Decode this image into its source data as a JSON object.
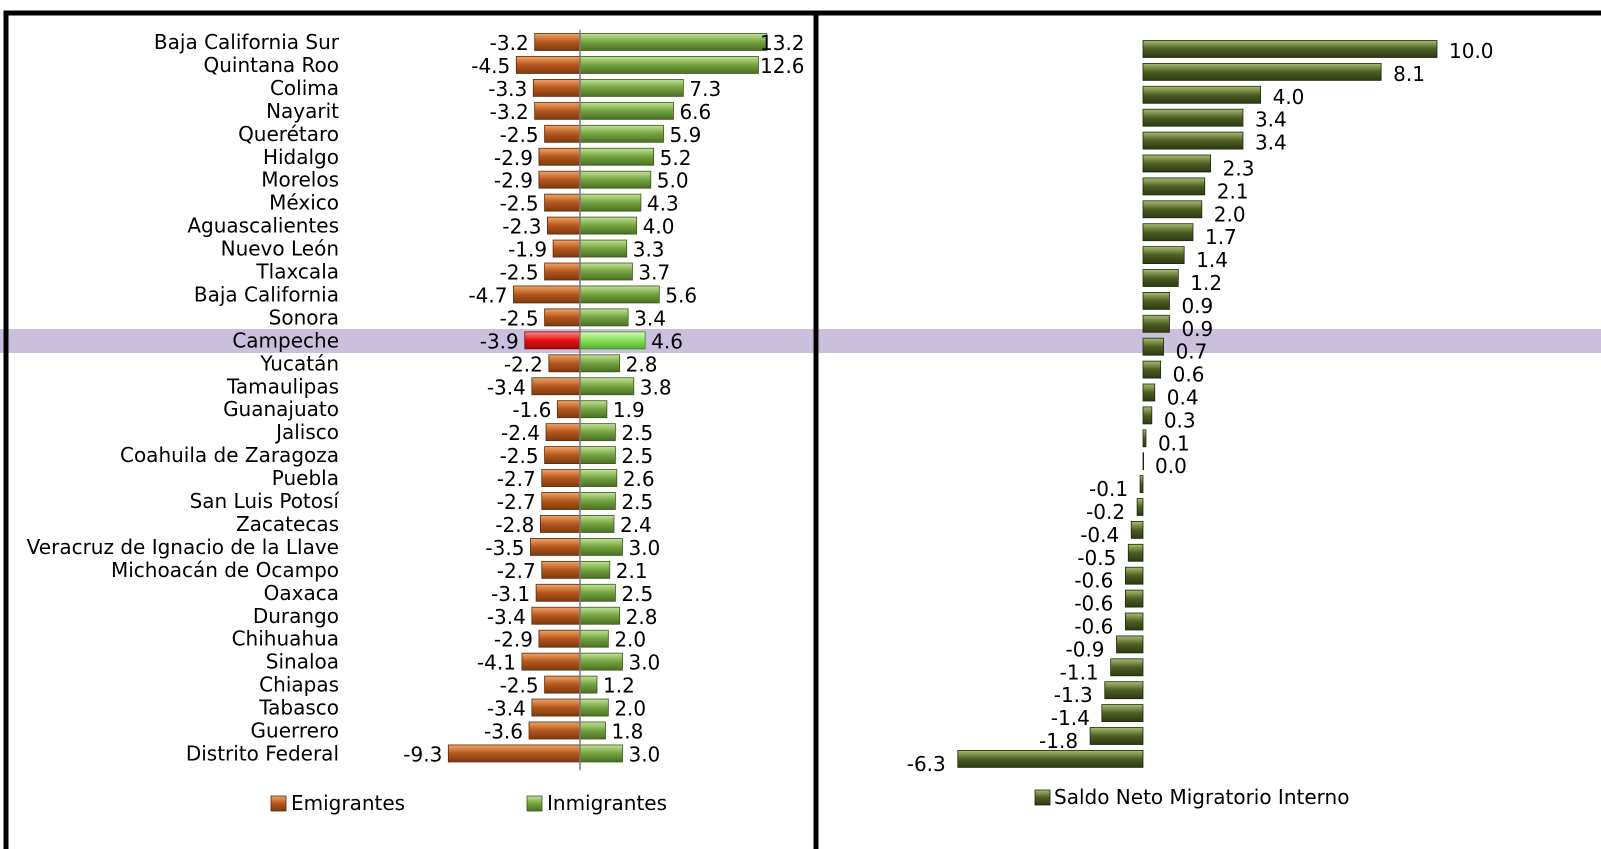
{
  "chart_data": [
    {
      "type": "bar",
      "orientation": "horizontal",
      "categories": [
        "Baja California Sur",
        "Quintana Roo",
        "Colima",
        "Nayarit",
        "Querétaro",
        "Hidalgo",
        "Morelos",
        "México",
        "Aguascalientes",
        "Nuevo León",
        "Tlaxcala",
        "Baja California",
        "Sonora",
        "Campeche",
        "Yucatán",
        "Tamaulipas",
        "Guanajuato",
        "Jalisco",
        "Coahuila de Zaragoza",
        "Puebla",
        "San Luis Potosí",
        "Zacatecas",
        "Veracruz de Ignacio de la Llave",
        "Michoacán de Ocampo",
        "Oaxaca",
        "Durango",
        "Chihuahua",
        "Sinaloa",
        "Chiapas",
        "Tabasco",
        "Guerrero",
        "Distrito Federal"
      ],
      "highlight_category": "Campeche",
      "series": [
        {
          "name": "Emigrantes",
          "color": "#b5561c",
          "highlight_color": "#e31010",
          "values": [
            -3.2,
            -4.5,
            -3.3,
            -3.2,
            -2.5,
            -2.9,
            -2.9,
            -2.5,
            -2.3,
            -1.9,
            -2.5,
            -4.7,
            -2.5,
            -3.9,
            -2.2,
            -3.4,
            -1.6,
            -2.4,
            -2.5,
            -2.7,
            -2.7,
            -2.8,
            -3.5,
            -2.7,
            -3.1,
            -3.4,
            -2.9,
            -4.1,
            -2.5,
            -3.4,
            -3.6,
            -9.3
          ],
          "labels": [
            "-3.2",
            "-4.5",
            "-3.3",
            "-3.2",
            "-2.5",
            "-2.9",
            "-2.9",
            "-2.5",
            "-2.3",
            "-1.9",
            "-2.5",
            "-4.7",
            "-2.5",
            "-3.9",
            "-2.2",
            "-3.4",
            "-1.6",
            "-2.4",
            "-2.5",
            "-2.7",
            "-2.7",
            "-2.8",
            "-3.5",
            "-2.7",
            "-3.1",
            "-3.4",
            "-2.9",
            "-4.1",
            "-2.5",
            "-3.4",
            "-3.6",
            "-9.3"
          ]
        },
        {
          "name": "Inmigrantes",
          "color": "#73a33e",
          "highlight_color": "#86e05a",
          "values": [
            13.2,
            12.6,
            7.3,
            6.6,
            5.9,
            5.2,
            5.0,
            4.3,
            4.0,
            3.3,
            3.7,
            5.6,
            3.4,
            4.6,
            2.8,
            3.8,
            1.9,
            2.5,
            2.5,
            2.6,
            2.5,
            2.4,
            3.0,
            2.1,
            2.5,
            2.8,
            2.0,
            3.0,
            1.2,
            2.0,
            1.8,
            3.0
          ],
          "labels": [
            "13.2",
            "12.6",
            "7.3",
            "6.6",
            "5.9",
            "5.2",
            "5.0",
            "4.3",
            "4.0",
            "3.3",
            "3.7",
            "5.6",
            "3.4",
            "4.6",
            "2.8",
            "3.8",
            "1.9",
            "2.5",
            "2.5",
            "2.6",
            "2.5",
            "2.4",
            "3.0",
            "2.1",
            "2.5",
            "2.8",
            "2.0",
            "3.0",
            "1.2",
            "2.0",
            "1.8",
            "3.0"
          ]
        }
      ],
      "legend": [
        "Emigrantes",
        "Inmigrantes"
      ],
      "legend_position": "bottom"
    },
    {
      "type": "bar",
      "orientation": "horizontal",
      "series": [
        {
          "name": "Saldo Neto Migratorio Interno",
          "color": "#4e5e24",
          "values": [
            10.0,
            8.1,
            4.0,
            3.4,
            3.4,
            2.3,
            2.1,
            2.0,
            1.7,
            1.4,
            1.2,
            0.9,
            0.9,
            0.7,
            0.6,
            0.4,
            0.3,
            0.1,
            0.0,
            -0.1,
            -0.2,
            -0.4,
            -0.5,
            -0.6,
            -0.6,
            -0.6,
            -0.9,
            -1.1,
            -1.3,
            -1.4,
            -1.8,
            -6.3
          ],
          "labels": [
            "10.0",
            "8.1",
            "4.0",
            "3.4",
            "3.4",
            "2.3",
            "2.1",
            "2.0",
            "1.7",
            "1.4",
            "1.2",
            "0.9",
            "0.9",
            "0.7",
            "0.6",
            "0.4",
            "0.3",
            "0.1",
            "0.0",
            "-0.1",
            "-0.2",
            "-0.4",
            "-0.5",
            "-0.6",
            "-0.6",
            "-0.6",
            "-0.9",
            "-1.1",
            "-1.3",
            "-1.4",
            "-1.8",
            "-6.3"
          ]
        }
      ],
      "legend": [
        "Saldo Neto Migratorio Interno"
      ],
      "legend_position": "bottom"
    }
  ]
}
